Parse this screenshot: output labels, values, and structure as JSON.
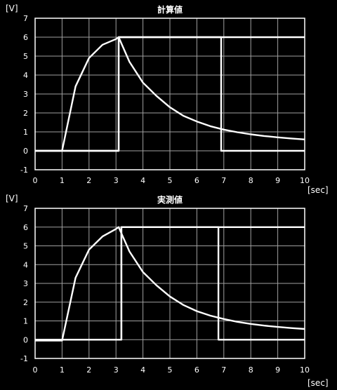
{
  "chart_data": [
    {
      "type": "line",
      "title": "計算値",
      "ylabel": "[V]",
      "xlabel": "[sec]",
      "xlim": [
        0,
        10
      ],
      "ylim": [
        -1,
        7
      ],
      "x_ticks": [
        "0",
        "1",
        "2",
        "3",
        "4",
        "5",
        "6",
        "7",
        "8",
        "9",
        "10"
      ],
      "y_ticks": [
        "-1",
        "0",
        "1",
        "2",
        "3",
        "4",
        "5",
        "6",
        "7"
      ],
      "grid": true,
      "line_color": "#ffffff",
      "background": "#000000",
      "series": [
        {
          "x": [
            0,
            1,
            1.5,
            2,
            2.5,
            3,
            3.1,
            3.5,
            4,
            4.5,
            5,
            5.5,
            6,
            6.5,
            7,
            7.5,
            8,
            8.5,
            9,
            9.5,
            10
          ],
          "y": [
            0,
            0,
            3.4,
            4.9,
            5.6,
            5.9,
            6,
            4.7,
            3.6,
            2.9,
            2.3,
            1.85,
            1.55,
            1.3,
            1.12,
            0.98,
            0.87,
            0.78,
            0.71,
            0.65,
            0.6
          ]
        },
        {
          "x": [
            0,
            3.1,
            3.1,
            6.9,
            6.9,
            10
          ],
          "y": [
            0,
            0,
            6,
            6,
            6,
            6
          ]
        },
        {
          "x": [
            0,
            3.1,
            3.1,
            6.9,
            6.9,
            10
          ],
          "y": [
            0,
            0,
            6,
            6,
            0,
            0
          ]
        }
      ]
    },
    {
      "type": "line",
      "title": "実測値",
      "ylabel": "[V]",
      "xlabel": "[sec]",
      "xlim": [
        0,
        10
      ],
      "ylim": [
        -1,
        7
      ],
      "x_ticks": [
        "0",
        "1",
        "2",
        "3",
        "4",
        "5",
        "6",
        "7",
        "8",
        "9",
        "10"
      ],
      "y_ticks": [
        "-1",
        "0",
        "1",
        "2",
        "3",
        "4",
        "5",
        "6",
        "7"
      ],
      "grid": true,
      "line_color": "#ffffff",
      "background": "#000000",
      "series": [
        {
          "x": [
            0,
            1,
            1.5,
            2,
            2.5,
            3,
            3.1,
            3.5,
            4,
            4.5,
            5,
            5.5,
            6,
            6.5,
            7,
            7.5,
            8,
            8.5,
            9,
            9.5,
            10
          ],
          "y": [
            -0.05,
            -0.05,
            3.3,
            4.8,
            5.5,
            5.9,
            6,
            4.7,
            3.6,
            2.9,
            2.3,
            1.85,
            1.52,
            1.28,
            1.1,
            0.95,
            0.84,
            0.75,
            0.68,
            0.62,
            0.57
          ]
        },
        {
          "x": [
            0,
            3.2,
            3.2,
            6.8,
            6.8,
            10
          ],
          "y": [
            0,
            0,
            6,
            6,
            6,
            6
          ]
        },
        {
          "x": [
            0,
            3.2,
            3.2,
            6.8,
            6.8,
            10
          ],
          "y": [
            0,
            0,
            6,
            6,
            0,
            0
          ]
        }
      ]
    }
  ]
}
